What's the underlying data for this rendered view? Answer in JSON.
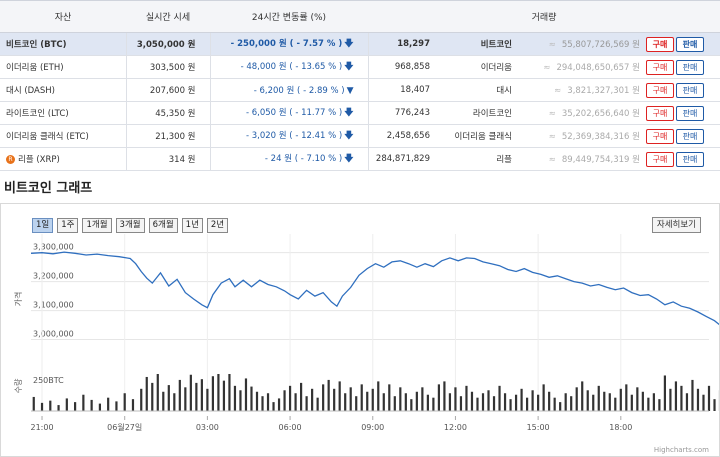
{
  "table": {
    "headers": [
      "자산",
      "실시간 시세",
      "24시간 변동률 (%)",
      "거래량"
    ],
    "buy_label": "구매",
    "sell_label": "판매",
    "approx": "≈",
    "rows": [
      {
        "name": "비트코인 (BTC)",
        "price": "3,050,000 원",
        "change": "- 250,000 원 ( - 7.57 % )",
        "arrow": "down",
        "tx": "18,297",
        "vname": "비트코인",
        "volume": "55,807,726,569 원",
        "selected": true
      },
      {
        "name": "이더리움 (ETH)",
        "price": "303,500 원",
        "change": "- 48,000 원 ( - 13.65 % )",
        "arrow": "down",
        "tx": "968,858",
        "vname": "이더리움",
        "volume": "294,048,650,657 원"
      },
      {
        "name": "대시 (DASH)",
        "price": "207,600 원",
        "change": "- 6,200 원 ( - 2.89 % )",
        "arrow": "down-tri",
        "tx": "18,407",
        "vname": "대시",
        "volume": "3,821,327,301 원"
      },
      {
        "name": "라이트코인 (LTC)",
        "price": "45,350 원",
        "change": "- 6,050 원 ( - 11.77 % )",
        "arrow": "down",
        "tx": "776,243",
        "vname": "라이트코인",
        "volume": "35,202,656,640 원"
      },
      {
        "name": "이더리움 클래식 (ETC)",
        "price": "21,300 원",
        "change": "- 3,020 원 ( - 12.41 % )",
        "arrow": "down",
        "tx": "2,458,656",
        "vname": "이더리움 클래식",
        "volume": "52,369,384,316 원"
      },
      {
        "name": "리플 (XRP)",
        "price": "314 원",
        "change": "- 24 원 ( - 7.10 % )",
        "arrow": "down",
        "tx": "284,871,829",
        "vname": "리플",
        "volume": "89,449,754,319 원",
        "icon": "xrp-icon"
      }
    ]
  },
  "graph": {
    "title": "비트코인 그래프",
    "ranges": [
      "1일",
      "1주",
      "1개월",
      "3개월",
      "6개월",
      "1년",
      "2년"
    ],
    "active_range": 0,
    "detail_label": "자세히보기",
    "credit": "Highcharts.com"
  },
  "chart_data": {
    "type": "line",
    "price_axis_title": "가격",
    "volume_axis_title": "수량",
    "volume_axis_max_label": "250BTC",
    "y_ticks": [
      "3,300,000",
      "3,200,000",
      "3,100,000",
      "3,000,000"
    ],
    "y_tick_values": [
      3300000,
      3200000,
      3100000,
      3000000
    ],
    "ylim": [
      2950000,
      3330000
    ],
    "x_ticks": [
      "21:00",
      "06월27일",
      "03:00",
      "06:00",
      "09:00",
      "12:00",
      "15:00",
      "18:00"
    ],
    "x_tick_hours": [
      0,
      3,
      6,
      9,
      12,
      15,
      18,
      21
    ],
    "x_range_hours": [
      -0.4,
      24.2
    ],
    "price": [
      [
        -0.4,
        3298000
      ],
      [
        0.0,
        3300000
      ],
      [
        0.4,
        3296000
      ],
      [
        0.8,
        3302000
      ],
      [
        1.2,
        3298000
      ],
      [
        1.6,
        3292000
      ],
      [
        2.0,
        3295000
      ],
      [
        2.4,
        3290000
      ],
      [
        2.8,
        3286000
      ],
      [
        3.2,
        3280000
      ],
      [
        3.4,
        3262000
      ],
      [
        3.6,
        3235000
      ],
      [
        3.8,
        3212000
      ],
      [
        4.0,
        3195000
      ],
      [
        4.3,
        3230000
      ],
      [
        4.6,
        3185000
      ],
      [
        4.9,
        3208000
      ],
      [
        5.2,
        3162000
      ],
      [
        5.5,
        3140000
      ],
      [
        5.8,
        3120000
      ],
      [
        6.0,
        3110000
      ],
      [
        6.2,
        3155000
      ],
      [
        6.5,
        3195000
      ],
      [
        6.8,
        3210000
      ],
      [
        7.0,
        3182000
      ],
      [
        7.3,
        3205000
      ],
      [
        7.6,
        3182000
      ],
      [
        7.9,
        3205000
      ],
      [
        8.2,
        3190000
      ],
      [
        8.5,
        3182000
      ],
      [
        8.8,
        3168000
      ],
      [
        9.0,
        3155000
      ],
      [
        9.3,
        3140000
      ],
      [
        9.6,
        3170000
      ],
      [
        9.9,
        3150000
      ],
      [
        10.2,
        3162000
      ],
      [
        10.5,
        3130000
      ],
      [
        10.7,
        3115000
      ],
      [
        10.9,
        3150000
      ],
      [
        11.2,
        3180000
      ],
      [
        11.5,
        3222000
      ],
      [
        11.8,
        3245000
      ],
      [
        12.1,
        3262000
      ],
      [
        12.4,
        3250000
      ],
      [
        12.7,
        3268000
      ],
      [
        13.0,
        3272000
      ],
      [
        13.3,
        3262000
      ],
      [
        13.6,
        3250000
      ],
      [
        13.9,
        3262000
      ],
      [
        14.2,
        3252000
      ],
      [
        14.5,
        3272000
      ],
      [
        14.8,
        3282000
      ],
      [
        15.1,
        3272000
      ],
      [
        15.4,
        3282000
      ],
      [
        15.7,
        3280000
      ],
      [
        16.0,
        3268000
      ],
      [
        16.3,
        3262000
      ],
      [
        16.6,
        3255000
      ],
      [
        16.9,
        3242000
      ],
      [
        17.2,
        3235000
      ],
      [
        17.5,
        3245000
      ],
      [
        17.8,
        3232000
      ],
      [
        18.1,
        3225000
      ],
      [
        18.4,
        3215000
      ],
      [
        18.7,
        3220000
      ],
      [
        19.0,
        3210000
      ],
      [
        19.3,
        3200000
      ],
      [
        19.6,
        3195000
      ],
      [
        19.9,
        3185000
      ],
      [
        20.2,
        3190000
      ],
      [
        20.5,
        3180000
      ],
      [
        20.8,
        3172000
      ],
      [
        21.1,
        3178000
      ],
      [
        21.4,
        3162000
      ],
      [
        21.7,
        3152000
      ],
      [
        22.0,
        3155000
      ],
      [
        22.3,
        3140000
      ],
      [
        22.6,
        3120000
      ],
      [
        22.9,
        3130000
      ],
      [
        23.2,
        3115000
      ],
      [
        23.5,
        3108000
      ],
      [
        23.8,
        3095000
      ],
      [
        24.1,
        3080000
      ],
      [
        24.4,
        3065000
      ],
      [
        24.7,
        3042000
      ]
    ],
    "volume": [
      [
        -0.3,
        95
      ],
      [
        0.0,
        55
      ],
      [
        0.3,
        70
      ],
      [
        0.6,
        40
      ],
      [
        0.9,
        85
      ],
      [
        1.2,
        60
      ],
      [
        1.5,
        110
      ],
      [
        1.8,
        75
      ],
      [
        2.1,
        50
      ],
      [
        2.4,
        90
      ],
      [
        2.7,
        65
      ],
      [
        3.0,
        120
      ],
      [
        3.3,
        80
      ],
      [
        3.6,
        150
      ],
      [
        3.8,
        230
      ],
      [
        4.0,
        190
      ],
      [
        4.2,
        290
      ],
      [
        4.4,
        130
      ],
      [
        4.6,
        175
      ],
      [
        4.8,
        120
      ],
      [
        5.0,
        210
      ],
      [
        5.2,
        160
      ],
      [
        5.4,
        245
      ],
      [
        5.6,
        190
      ],
      [
        5.8,
        215
      ],
      [
        6.0,
        150
      ],
      [
        6.2,
        235
      ],
      [
        6.4,
        260
      ],
      [
        6.6,
        205
      ],
      [
        6.8,
        250
      ],
      [
        7.0,
        170
      ],
      [
        7.2,
        140
      ],
      [
        7.4,
        220
      ],
      [
        7.6,
        165
      ],
      [
        7.8,
        130
      ],
      [
        8.0,
        100
      ],
      [
        8.2,
        120
      ],
      [
        8.4,
        60
      ],
      [
        8.6,
        85
      ],
      [
        8.8,
        140
      ],
      [
        9.0,
        170
      ],
      [
        9.2,
        120
      ],
      [
        9.4,
        190
      ],
      [
        9.6,
        100
      ],
      [
        9.8,
        150
      ],
      [
        10.0,
        90
      ],
      [
        10.2,
        180
      ],
      [
        10.4,
        210
      ],
      [
        10.6,
        150
      ],
      [
        10.8,
        200
      ],
      [
        11.0,
        120
      ],
      [
        11.2,
        160
      ],
      [
        11.4,
        100
      ],
      [
        11.6,
        180
      ],
      [
        11.8,
        130
      ],
      [
        12.0,
        150
      ],
      [
        12.2,
        200
      ],
      [
        12.4,
        120
      ],
      [
        12.6,
        180
      ],
      [
        12.8,
        100
      ],
      [
        13.0,
        160
      ],
      [
        13.2,
        120
      ],
      [
        13.4,
        80
      ],
      [
        13.6,
        130
      ],
      [
        13.8,
        160
      ],
      [
        14.0,
        110
      ],
      [
        14.2,
        90
      ],
      [
        14.4,
        180
      ],
      [
        14.6,
        200
      ],
      [
        14.8,
        120
      ],
      [
        15.0,
        160
      ],
      [
        15.2,
        100
      ],
      [
        15.4,
        170
      ],
      [
        15.6,
        130
      ],
      [
        15.8,
        90
      ],
      [
        16.0,
        120
      ],
      [
        16.2,
        140
      ],
      [
        16.4,
        100
      ],
      [
        16.6,
        170
      ],
      [
        16.8,
        120
      ],
      [
        17.0,
        80
      ],
      [
        17.2,
        110
      ],
      [
        17.4,
        150
      ],
      [
        17.6,
        90
      ],
      [
        17.8,
        140
      ],
      [
        18.0,
        110
      ],
      [
        18.2,
        180
      ],
      [
        18.4,
        130
      ],
      [
        18.6,
        90
      ],
      [
        18.8,
        60
      ],
      [
        19.0,
        120
      ],
      [
        19.2,
        100
      ],
      [
        19.4,
        160
      ],
      [
        19.6,
        200
      ],
      [
        19.8,
        140
      ],
      [
        20.0,
        110
      ],
      [
        20.2,
        170
      ],
      [
        20.4,
        130
      ],
      [
        20.6,
        120
      ],
      [
        20.8,
        90
      ],
      [
        21.0,
        150
      ],
      [
        21.2,
        180
      ],
      [
        21.4,
        110
      ],
      [
        21.6,
        160
      ],
      [
        21.8,
        130
      ],
      [
        22.0,
        90
      ],
      [
        22.2,
        120
      ],
      [
        22.4,
        80
      ],
      [
        22.6,
        240
      ],
      [
        22.8,
        150
      ],
      [
        23.0,
        200
      ],
      [
        23.2,
        170
      ],
      [
        23.4,
        120
      ],
      [
        23.6,
        210
      ],
      [
        23.8,
        150
      ],
      [
        24.0,
        110
      ],
      [
        24.2,
        170
      ],
      [
        24.4,
        80
      ],
      [
        24.6,
        140
      ],
      [
        24.8,
        60
      ]
    ],
    "volume_max": 250
  }
}
